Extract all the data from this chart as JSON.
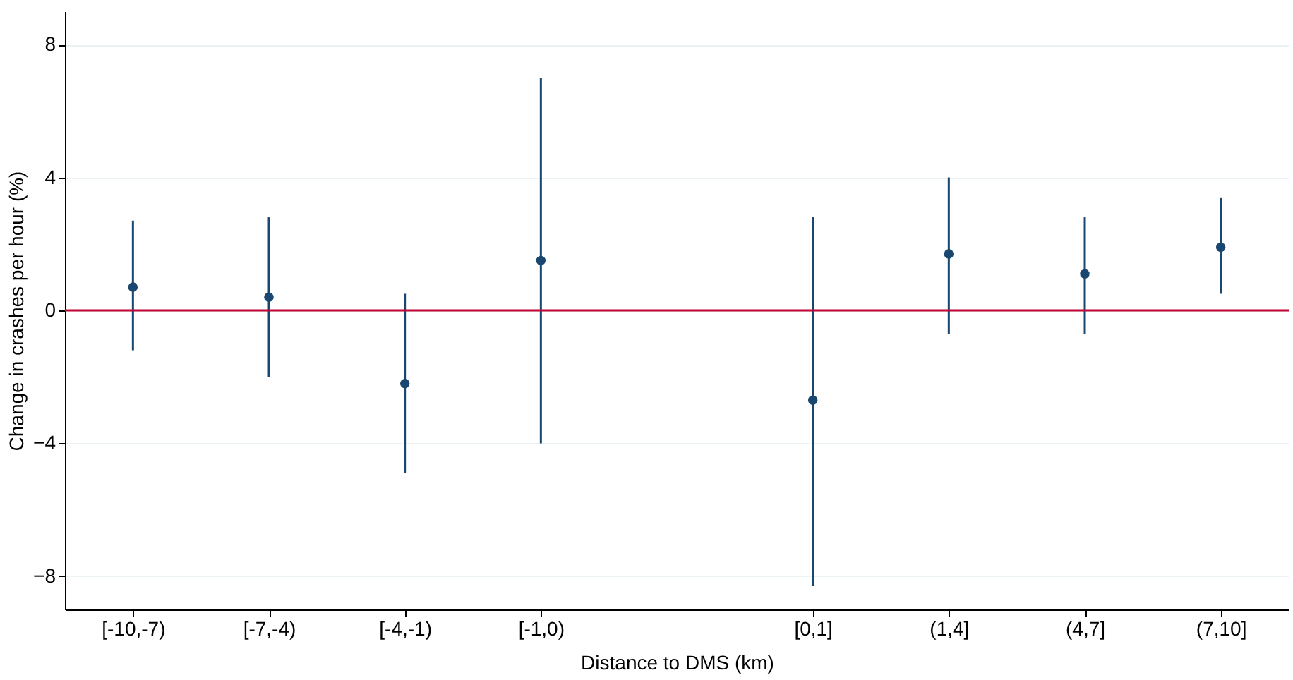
{
  "chart_data": {
    "type": "scatter",
    "xlabel": "Distance to DMS (km)",
    "ylabel": "Change in crashes per hour (%)",
    "categories": [
      "[-10,-7)",
      "[-7,-4)",
      "[-4,-1)",
      "[-1,0)",
      null,
      "[0,1]",
      "(1,4]",
      "(4,7]",
      "(7,10]"
    ],
    "series": [
      {
        "color": "#1a476f",
        "values": [
          0.7,
          0.4,
          -2.2,
          1.5,
          null,
          -2.7,
          1.7,
          1.1,
          1.9
        ],
        "errors": [
          [
            -1.2,
            2.7
          ],
          [
            -2.0,
            2.8
          ],
          [
            -4.9,
            0.5
          ],
          [
            -4.0,
            7.0
          ],
          null,
          [
            -8.3,
            2.8
          ],
          [
            -0.7,
            4.0
          ],
          [
            -0.7,
            2.8
          ],
          [
            0.5,
            3.4
          ]
        ]
      }
    ],
    "ylim": [
      -9,
      9
    ],
    "yticks": [
      -8,
      -4,
      0,
      4,
      8
    ],
    "grid": "y",
    "marker": "circle",
    "ref_lines": [
      {
        "axis": "y",
        "value": 0,
        "color": "#c10534"
      }
    ]
  }
}
